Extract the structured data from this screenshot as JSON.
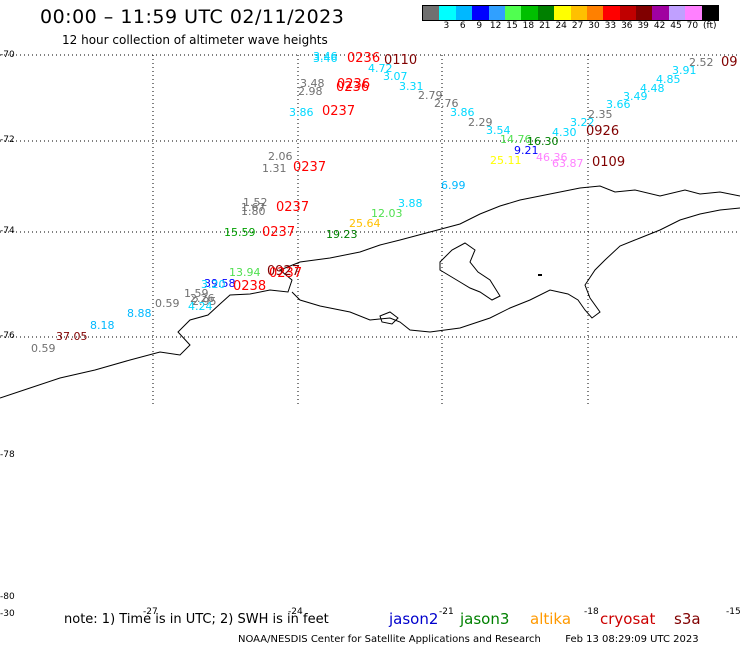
{
  "header": {
    "title": "00:00 – 11:59 UTC 02/11/2023",
    "subtitle": "12 hour collection of altimeter wave heights"
  },
  "colorbar": {
    "unit_label": "(ft)",
    "colors": [
      "#707070",
      "#00ffff",
      "#00b8ff",
      "#0000ff",
      "#30a0ff",
      "#50ff50",
      "#00c000",
      "#008000",
      "#ffff00",
      "#ffc000",
      "#ff8000",
      "#ff0000",
      "#c00000",
      "#800000",
      "#a000a0",
      "#c0a0ff",
      "#ff80ff",
      "#000000"
    ],
    "labels": [
      "3",
      "6",
      "9",
      "12",
      "15",
      "18",
      "21",
      "24",
      "27",
      "30",
      "33",
      "36",
      "39",
      "42",
      "45",
      "70"
    ]
  },
  "axes": {
    "lat_labels": [
      "-70",
      "-72",
      "-74",
      "-76",
      "-78",
      "-78",
      "-80",
      "-30"
    ],
    "lon_labels": [
      "-27",
      "-24",
      "-21",
      "-18",
      "-15"
    ]
  },
  "observations": [
    {
      "text": "3.46",
      "color": "#00d8ff"
    },
    {
      "text": "3.46",
      "color": "#00d8ff"
    },
    {
      "text": "4.72",
      "color": "#00d8ff"
    },
    {
      "text": "3.07",
      "color": "#00d8ff"
    },
    {
      "text": "3.31",
      "color": "#00d8ff"
    },
    {
      "text": "2.79",
      "color": "#707070"
    },
    {
      "text": "2.76",
      "color": "#707070"
    },
    {
      "text": "3.48",
      "color": "#707070"
    },
    {
      "text": "2.98",
      "color": "#707070"
    },
    {
      "text": "3.86",
      "color": "#00d8ff"
    },
    {
      "text": "3.86",
      "color": "#00d8ff"
    },
    {
      "text": "2.29",
      "color": "#707070"
    },
    {
      "text": "3.54",
      "color": "#00d8ff"
    },
    {
      "text": "14.76",
      "color": "#50e050"
    },
    {
      "text": "16.30",
      "color": "#008000"
    },
    {
      "text": "4.30",
      "color": "#00d8ff"
    },
    {
      "text": "3.22",
      "color": "#00d8ff"
    },
    {
      "text": "2.35",
      "color": "#707070"
    },
    {
      "text": "3.66",
      "color": "#00d8ff"
    },
    {
      "text": "3.49",
      "color": "#00d8ff"
    },
    {
      "text": "4.48",
      "color": "#00d8ff"
    },
    {
      "text": "4.85",
      "color": "#00d8ff"
    },
    {
      "text": "3.91",
      "color": "#00d8ff"
    },
    {
      "text": "2.52",
      "color": "#707070"
    },
    {
      "text": "9.21",
      "color": "#0000ff"
    },
    {
      "text": "25.11",
      "color": "#ffff00"
    },
    {
      "text": "46.36",
      "color": "#ff80ff"
    },
    {
      "text": "63.87",
      "color": "#ff80ff"
    },
    {
      "text": "2.06",
      "color": "#707070"
    },
    {
      "text": "1.31",
      "color": "#707070"
    },
    {
      "text": "6.99",
      "color": "#00b8ff"
    },
    {
      "text": "3.88",
      "color": "#00d8ff"
    },
    {
      "text": "12.03",
      "color": "#50e050"
    },
    {
      "text": "25.64",
      "color": "#ffc000"
    },
    {
      "text": "1.52",
      "color": "#707070"
    },
    {
      "text": "1.67",
      "color": "#707070"
    },
    {
      "text": "1.80",
      "color": "#707070"
    },
    {
      "text": "15.59",
      "color": "#00a000"
    },
    {
      "text": "19.23",
      "color": "#008000"
    },
    {
      "text": "13.94",
      "color": "#50e050"
    },
    {
      "text": "39.58",
      "color": "#0000ff"
    },
    {
      "text": "3.20",
      "color": "#00d8ff"
    },
    {
      "text": "1.59",
      "color": "#707070"
    },
    {
      "text": "2.26",
      "color": "#707070"
    },
    {
      "text": "2.95",
      "color": "#707070"
    },
    {
      "text": "4.24",
      "color": "#00d8ff"
    },
    {
      "text": "0.59",
      "color": "#707070"
    },
    {
      "text": "8.88",
      "color": "#00b8ff"
    },
    {
      "text": "8.18",
      "color": "#00b8ff"
    },
    {
      "text": "37.05",
      "color": "#800000"
    },
    {
      "text": "0.59",
      "color": "#707070"
    }
  ],
  "passes": [
    {
      "text": "0236",
      "color": "#ff0000"
    },
    {
      "text": "0110",
      "color": "#800000"
    },
    {
      "text": "0236",
      "color": "#ff0000"
    },
    {
      "text": "0236",
      "color": "#ff0000"
    },
    {
      "text": "0237",
      "color": "#ff0000"
    },
    {
      "text": "0926",
      "color": "#800000"
    },
    {
      "text": "0109",
      "color": "#800000"
    },
    {
      "text": "0237",
      "color": "#ff0000"
    },
    {
      "text": "0237",
      "color": "#ff0000"
    },
    {
      "text": "0237",
      "color": "#ff0000"
    },
    {
      "text": "0927",
      "color": "#800000"
    },
    {
      "text": "0237",
      "color": "#ff0000"
    },
    {
      "text": "0238",
      "color": "#ff0000"
    },
    {
      "text": "09",
      "color": "#800000"
    }
  ],
  "footer": {
    "note": "note: 1) Time is in UTC; 2) SWH is in feet",
    "satellites": [
      {
        "name": "jason2",
        "color": "#0000cc"
      },
      {
        "name": "jason3",
        "color": "#008000"
      },
      {
        "name": "altika",
        "color": "#ff9900"
      },
      {
        "name": "cryosat",
        "color": "#cc0000"
      },
      {
        "name": "s3a",
        "color": "#800000"
      }
    ],
    "credit": "NOAA/NESDIS Center for Satellite Applications and Research",
    "timestamp": "Feb 13 08:29:09 UTC 2023"
  }
}
